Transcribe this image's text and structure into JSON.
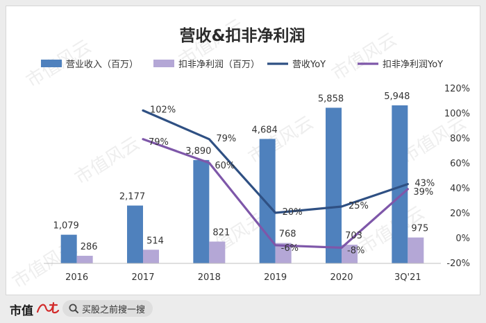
{
  "chart_data": {
    "type": "bar",
    "title": "营收&扣非净利润",
    "categories": [
      "2016",
      "2017",
      "2018",
      "2019",
      "2020",
      "3Q'21"
    ],
    "series": [
      {
        "name": "营业收入（百万）",
        "kind": "bar",
        "axis": "left",
        "color": "#4f81bd",
        "values": [
          1079,
          2177,
          3890,
          4684,
          5858,
          5948
        ],
        "labels": [
          "1,079",
          "2,177",
          "3,890",
          "4,684",
          "5,858",
          "5,948"
        ]
      },
      {
        "name": "扣非净利润（百万）",
        "kind": "bar",
        "axis": "left",
        "color": "#b4a7d6",
        "values": [
          286,
          514,
          821,
          768,
          703,
          975
        ],
        "labels": [
          "286",
          "514",
          "821",
          "768",
          "703",
          "975"
        ]
      },
      {
        "name": "营收YoY",
        "kind": "line",
        "axis": "right",
        "unit": "%",
        "color": "#2f5083",
        "values": [
          null,
          102,
          79,
          20,
          25,
          43
        ],
        "labels": [
          "",
          "102%",
          "79%",
          "20%",
          "25%",
          "43%"
        ]
      },
      {
        "name": "扣非净利润YoY",
        "kind": "line",
        "axis": "right",
        "unit": "%",
        "color": "#7e57a9",
        "values": [
          null,
          79,
          60,
          -6,
          -8,
          39
        ],
        "labels": [
          "",
          "79%",
          "60%",
          "-6%",
          "-8%",
          "39%"
        ]
      }
    ],
    "y_left_range": [
      0,
      6000
    ],
    "y_right_range": [
      -20,
      120
    ],
    "y_right_ticks": [
      "120%",
      "100%",
      "80%",
      "60%",
      "40%",
      "20%",
      "0%",
      "-20%"
    ],
    "legend_position": "top",
    "grid": false
  },
  "watermark": "市值风云",
  "footer": {
    "brand": "市值",
    "search_text": "买股之前搜一搜"
  }
}
